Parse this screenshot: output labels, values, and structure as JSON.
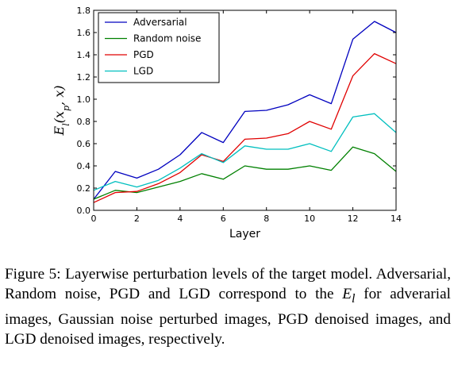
{
  "chart_data": {
    "type": "line",
    "xlabel": "Layer",
    "ylabel": "E_l(x_p, x)",
    "xlim": [
      0,
      14
    ],
    "ylim": [
      0.0,
      1.8
    ],
    "xticks": [
      0,
      2,
      4,
      6,
      8,
      10,
      12,
      14
    ],
    "yticks": [
      0.0,
      0.2,
      0.4,
      0.6,
      0.8,
      1.0,
      1.2,
      1.4,
      1.6,
      1.8
    ],
    "grid": false,
    "legend_position": "top-left",
    "x": [
      0,
      1,
      2,
      3,
      4,
      5,
      6,
      7,
      8,
      9,
      10,
      11,
      12,
      13,
      14
    ],
    "series": [
      {
        "name": "Adversarial",
        "color": "#0000bf",
        "values": [
          0.1,
          0.35,
          0.29,
          0.37,
          0.5,
          0.7,
          0.61,
          0.89,
          0.9,
          0.95,
          1.04,
          0.96,
          1.54,
          1.7,
          1.6
        ]
      },
      {
        "name": "Random noise",
        "color": "#008000",
        "values": [
          0.1,
          0.18,
          0.16,
          0.21,
          0.26,
          0.33,
          0.28,
          0.4,
          0.37,
          0.37,
          0.4,
          0.36,
          0.57,
          0.51,
          0.35
        ]
      },
      {
        "name": "PGD",
        "color": "#e00000",
        "values": [
          0.07,
          0.16,
          0.17,
          0.24,
          0.34,
          0.5,
          0.44,
          0.64,
          0.65,
          0.69,
          0.8,
          0.73,
          1.21,
          1.41,
          1.32
        ]
      },
      {
        "name": "LGD",
        "color": "#00bfbf",
        "values": [
          0.18,
          0.26,
          0.21,
          0.27,
          0.38,
          0.51,
          0.43,
          0.58,
          0.55,
          0.55,
          0.6,
          0.53,
          0.84,
          0.87,
          0.7
        ]
      }
    ]
  },
  "caption": {
    "label": "Figure 5:",
    "text_before": " Layerwise perturbation levels of the target model. Adversarial, Random noise, PGD and LGD correspond to the ",
    "symbol": "E",
    "symbol_sub": "l",
    "text_after": " for adverarial images, Gaussian noise perturbed images, PGD denoised images, and LGD denoised images, respectively."
  }
}
